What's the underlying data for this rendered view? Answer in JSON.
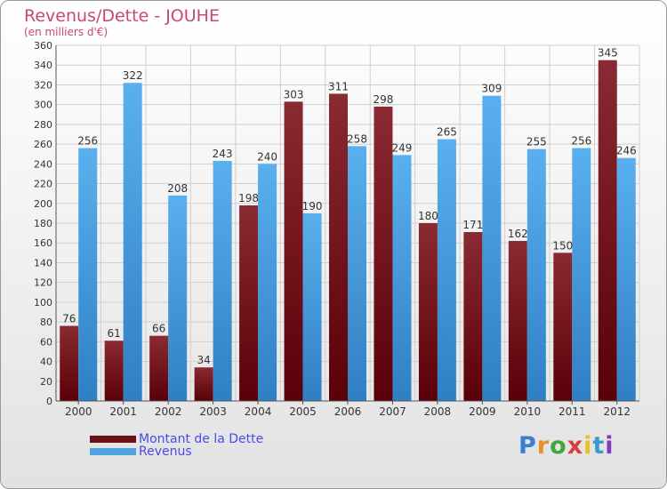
{
  "header": {
    "title": "Revenus/Dette - JOUHE",
    "subtitle": "(en milliers d'€)"
  },
  "legend": {
    "items": [
      {
        "label": "Montant de la Dette",
        "color": "#6b1218"
      },
      {
        "label": "Revenus",
        "color": "#4fa3e0"
      }
    ]
  },
  "logo": {
    "text": "Proxiti"
  },
  "chart_data": {
    "type": "bar",
    "title": "Revenus/Dette - JOUHE",
    "subtitle": "(en milliers d'€)",
    "categories": [
      "2000",
      "2001",
      "2002",
      "2003",
      "2004",
      "2005",
      "2006",
      "2007",
      "2008",
      "2009",
      "2010",
      "2011",
      "2012"
    ],
    "series": [
      {
        "name": "Montant de la Dette",
        "color": "#6b1218",
        "values": [
          76,
          61,
          66,
          34,
          198,
          303,
          311,
          298,
          180,
          171,
          162,
          150,
          345
        ]
      },
      {
        "name": "Revenus",
        "color": "#4fa3e0",
        "values": [
          256,
          322,
          208,
          243,
          240,
          190,
          258,
          249,
          265,
          309,
          255,
          256,
          246
        ]
      }
    ],
    "ylim": [
      0,
      360
    ],
    "ytick_step": 20,
    "grid": true,
    "legend_position": "bottom-left"
  }
}
